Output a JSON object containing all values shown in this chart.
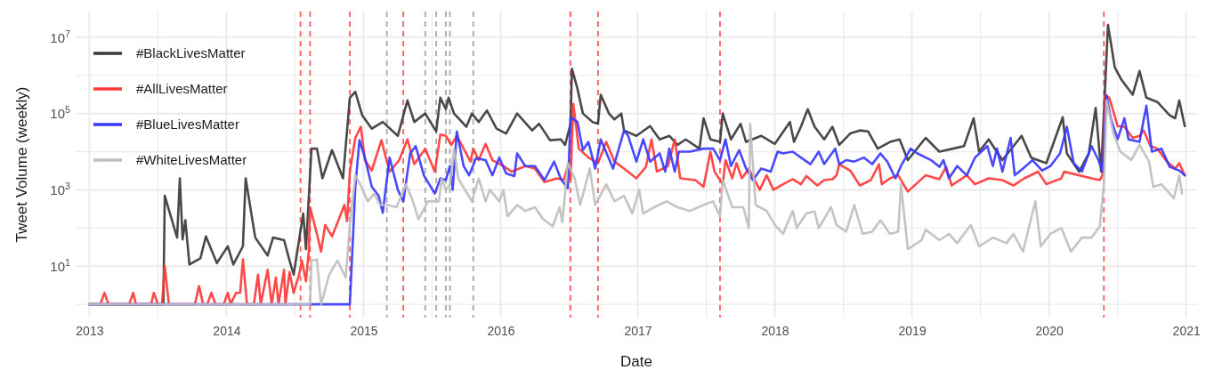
{
  "chart_data": {
    "type": "line",
    "xlabel": "Date",
    "ylabel": "Tweet Volume (weekly)",
    "log": true,
    "grid": true,
    "legend": "top left",
    "xlim": [
      2012.9,
      2021.08
    ],
    "xticks": [
      2013,
      {
        "value": 2013.5,
        "label": null
      },
      2014,
      {
        "value": 2014.5,
        "label": null
      },
      2015,
      {
        "value": 2015.5,
        "label": null
      },
      2016,
      {
        "value": 2016.5,
        "label": null
      },
      2017,
      {
        "value": 2017.5,
        "label": null
      },
      2018,
      {
        "value": 2018.5,
        "label": null
      },
      2019,
      {
        "value": 2019.5,
        "label": null
      },
      2020,
      {
        "value": 2020.5,
        "label": null
      },
      2021
    ],
    "ylim": [
      0.45,
      47000000
    ],
    "yticks": [
      {
        "value": 1,
        "label": null
      },
      {
        "value": 10,
        "label": "10$^{1}$"
      },
      {
        "value": 100,
        "label": null
      },
      {
        "value": 1000,
        "label": "10$^{3}$"
      },
      {
        "value": 10000,
        "label": null
      },
      {
        "value": 100000,
        "label": "10$^{5}$"
      },
      {
        "value": 1000000,
        "label": null
      },
      {
        "value": 10000000,
        "label": "10$^{7}$"
      }
    ],
    "ref_lines": [
      {
        "axis": "x",
        "value": 2014.54,
        "color": "#ff5a5a",
        "line_style": "dashed"
      },
      {
        "axis": "x",
        "value": 2014.61,
        "color": "#ff5a5a",
        "line_style": "dashed"
      },
      {
        "axis": "x",
        "value": 2014.9,
        "color": "#ff5a5a",
        "line_style": "dashed"
      },
      {
        "axis": "x",
        "value": 2015.17,
        "color": "#a8a8a8",
        "line_style": "dashed"
      },
      {
        "axis": "x",
        "value": 2015.29,
        "color": "#ff5a5a",
        "line_style": "dashed"
      },
      {
        "axis": "x",
        "value": 2015.45,
        "color": "#a8a8a8",
        "line_style": "dashed"
      },
      {
        "axis": "x",
        "value": 2015.53,
        "color": "#a8a8a8",
        "line_style": "dashed"
      },
      {
        "axis": "x",
        "value": 2015.6,
        "color": "#a8a8a8",
        "line_style": "dashed"
      },
      {
        "axis": "x",
        "value": 2015.63,
        "color": "#a8a8a8",
        "line_style": "dashed"
      },
      {
        "axis": "x",
        "value": 2015.8,
        "color": "#a8a8a8",
        "line_style": "dashed"
      },
      {
        "axis": "x",
        "value": 2016.51,
        "color": "#ff5a5a",
        "line_style": "dashed"
      },
      {
        "axis": "x",
        "value": 2016.71,
        "color": "#ff5a5a",
        "line_style": "dashed"
      },
      {
        "axis": "x",
        "value": 2017.6,
        "color": "#ff5a5a",
        "line_style": "dashed"
      },
      {
        "axis": "x",
        "value": 2020.4,
        "color": "#ff5a5a",
        "line_style": "dashed"
      }
    ],
    "series": [
      {
        "name": "#BlackLivesMatter",
        "color": "#3a3a3a",
        "x": [
          2013.0,
          2013.54,
          2013.55,
          2013.58,
          2013.64,
          2013.66,
          2013.68,
          2013.7,
          2013.73,
          2013.81,
          2013.85,
          2013.93,
          2014.01,
          2014.05,
          2014.12,
          2014.14,
          2014.21,
          2014.3,
          2014.34,
          2014.42,
          2014.46,
          2014.49,
          2014.56,
          2014.58,
          2014.62,
          2014.66,
          2014.7,
          2014.77,
          2014.85,
          2014.9,
          2014.94,
          2014.99,
          2015.06,
          2015.14,
          2015.25,
          2015.32,
          2015.37,
          2015.45,
          2015.53,
          2015.56,
          2015.6,
          2015.62,
          2015.66,
          2015.75,
          2015.79,
          2015.84,
          2015.9,
          2015.97,
          2016.04,
          2016.12,
          2016.23,
          2016.28,
          2016.36,
          2016.44,
          2016.47,
          2016.51,
          2016.52,
          2016.56,
          2016.6,
          2016.67,
          2016.71,
          2016.73,
          2016.79,
          2016.83,
          2016.88,
          2016.9,
          2016.99,
          2017.09,
          2017.16,
          2017.23,
          2017.29,
          2017.35,
          2017.45,
          2017.48,
          2017.53,
          2017.6,
          2017.62,
          2017.68,
          2017.75,
          2017.79,
          2017.9,
          2018.0,
          2018.11,
          2018.14,
          2018.19,
          2018.24,
          2018.29,
          2018.36,
          2018.42,
          2018.47,
          2018.55,
          2018.62,
          2018.68,
          2018.75,
          2018.84,
          2018.91,
          2018.97,
          2019.1,
          2019.2,
          2019.3,
          2019.38,
          2019.45,
          2019.49,
          2019.56,
          2019.66,
          2019.8,
          2019.87,
          2019.98,
          2020.1,
          2020.13,
          2020.22,
          2020.29,
          2020.34,
          2020.38,
          2020.43,
          2020.48,
          2020.53,
          2020.61,
          2020.66,
          2020.71,
          2020.79,
          2020.88,
          2020.92,
          2020.95,
          2020.99
        ],
        "values": [
          1,
          1,
          700,
          300,
          56,
          2000,
          50,
          160,
          11,
          16,
          60,
          12,
          33,
          11,
          33,
          2000,
          56,
          19,
          56,
          48,
          14,
          6,
          240,
          28,
          12000,
          12000,
          2000,
          11000,
          2000,
          260000,
          370000,
          90000,
          40000,
          60000,
          26000,
          220000,
          60000,
          100000,
          34000,
          260000,
          130000,
          260000,
          100000,
          45000,
          100000,
          60000,
          120000,
          40000,
          30000,
          100000,
          36000,
          54000,
          20000,
          21000,
          15000,
          54000,
          1500000,
          450000,
          100000,
          60000,
          54000,
          310000,
          100000,
          70000,
          100000,
          36000,
          26000,
          47000,
          21000,
          26000,
          15000,
          21000,
          12000,
          75000,
          21000,
          18000,
          100000,
          21000,
          54000,
          18000,
          26000,
          16000,
          60000,
          18000,
          45000,
          130000,
          45000,
          21000,
          45000,
          15000,
          30000,
          36000,
          34000,
          12000,
          18000,
          21000,
          6000,
          23000,
          10000,
          12000,
          14000,
          75000,
          10000,
          21000,
          6000,
          26000,
          7000,
          5000,
          80000,
          9000,
          3000,
          9000,
          140000,
          3000,
          21000000,
          1600000,
          750000,
          310000,
          1300000,
          260000,
          200000,
          90000,
          75000,
          220000,
          47000
        ]
      },
      {
        "name": "#AllLivesMatter",
        "color": "#ff3a3a",
        "x": [
          2013.0,
          2013.08,
          2013.11,
          2013.14,
          2013.29,
          2013.32,
          2013.34,
          2013.45,
          2013.47,
          2013.5,
          2013.53,
          2013.55,
          2013.58,
          2013.77,
          2013.8,
          2013.83,
          2013.86,
          2013.89,
          2013.92,
          2013.98,
          2014.01,
          2014.03,
          2014.07,
          2014.1,
          2014.12,
          2014.15,
          2014.2,
          2014.23,
          2014.25,
          2014.3,
          2014.33,
          2014.36,
          2014.38,
          2014.42,
          2014.43,
          2014.46,
          2014.49,
          2014.53,
          2014.55,
          2014.58,
          2014.6,
          2014.61,
          2014.66,
          2014.69,
          2014.72,
          2014.77,
          2014.82,
          2014.86,
          2014.88,
          2014.9,
          2014.94,
          2014.98,
          2015.01,
          2015.06,
          2015.13,
          2015.19,
          2015.26,
          2015.32,
          2015.37,
          2015.45,
          2015.52,
          2015.56,
          2015.6,
          2015.64,
          2015.68,
          2015.73,
          2015.78,
          2015.8,
          2015.84,
          2015.89,
          2015.94,
          2016.02,
          2016.08,
          2016.18,
          2016.25,
          2016.32,
          2016.41,
          2016.46,
          2016.49,
          2016.51,
          2016.53,
          2016.57,
          2016.64,
          2016.71,
          2016.77,
          2016.83,
          2016.9,
          2016.99,
          2017.06,
          2017.1,
          2017.14,
          2017.22,
          2017.27,
          2017.31,
          2017.42,
          2017.48,
          2017.53,
          2017.56,
          2017.62,
          2017.64,
          2017.69,
          2017.72,
          2017.76,
          2017.81,
          2017.89,
          2017.94,
          2017.99,
          2018.06,
          2018.13,
          2018.19,
          2018.23,
          2018.31,
          2018.36,
          2018.42,
          2018.45,
          2018.47,
          2018.55,
          2018.62,
          2018.7,
          2018.76,
          2018.78,
          2018.84,
          2018.9,
          2018.97,
          2019.1,
          2019.2,
          2019.25,
          2019.29,
          2019.4,
          2019.46,
          2019.56,
          2019.66,
          2019.74,
          2019.82,
          2019.92,
          2019.98,
          2020.09,
          2020.11,
          2020.22,
          2020.31,
          2020.37,
          2020.39,
          2020.41,
          2020.44,
          2020.5,
          2020.55,
          2020.61,
          2020.66,
          2020.69,
          2020.74,
          2020.79,
          2020.86,
          2020.92,
          2020.95,
          2020.99
        ],
        "values": [
          1,
          1,
          2,
          1,
          1,
          2,
          1,
          1,
          2,
          1,
          1,
          10,
          1,
          1,
          3,
          1,
          1,
          2,
          1,
          1,
          2,
          1,
          2,
          2,
          15,
          1,
          1,
          6,
          1,
          8,
          1,
          5,
          1,
          8,
          1,
          7,
          2,
          6,
          14,
          4,
          24,
          350,
          70,
          24,
          120,
          60,
          170,
          400,
          150,
          3000,
          23000,
          45000,
          6000,
          3200,
          20000,
          3000,
          6000,
          21000,
          4700,
          12000,
          3000,
          28000,
          26000,
          15000,
          26000,
          12000,
          5500,
          12000,
          6000,
          16000,
          6000,
          4200,
          3000,
          4200,
          3600,
          1600,
          2000,
          1800,
          4200,
          1800,
          180000,
          12000,
          7000,
          5000,
          18000,
          5500,
          3600,
          2000,
          4000,
          21000,
          3000,
          4200,
          21000,
          2000,
          1800,
          1200,
          10000,
          3000,
          1400,
          6000,
          2000,
          5000,
          2000,
          3600,
          1000,
          2400,
          1000,
          1400,
          1900,
          1400,
          2300,
          1300,
          1800,
          1900,
          2400,
          4700,
          3200,
          1300,
          1800,
          4700,
          1400,
          2000,
          2400,
          900,
          2400,
          1900,
          4000,
          1300,
          2400,
          1400,
          2000,
          1800,
          1300,
          2000,
          3000,
          1400,
          2000,
          3000,
          2400,
          2000,
          1800,
          2400,
          300000,
          260000,
          47000,
          45000,
          23000,
          26000,
          36000,
          14000,
          12000,
          5500,
          3600,
          5000,
          2400
        ]
      },
      {
        "name": "#BlueLivesMatter",
        "color": "#3a3aff",
        "x": [
          2013.0,
          2014.9,
          2014.94,
          2014.97,
          2015.01,
          2015.06,
          2015.11,
          2015.14,
          2015.19,
          2015.25,
          2015.29,
          2015.34,
          2015.38,
          2015.44,
          2015.52,
          2015.56,
          2015.6,
          2015.63,
          2015.65,
          2015.68,
          2015.73,
          2015.77,
          2015.82,
          2015.89,
          2015.94,
          2015.99,
          2016.04,
          2016.1,
          2016.12,
          2016.18,
          2016.25,
          2016.32,
          2016.39,
          2016.44,
          2016.49,
          2016.51,
          2016.56,
          2016.6,
          2016.64,
          2016.69,
          2016.73,
          2016.82,
          2016.9,
          2016.93,
          2016.99,
          2017.04,
          2017.09,
          2017.16,
          2017.2,
          2017.23,
          2017.27,
          2017.3,
          2017.38,
          2017.48,
          2017.55,
          2017.6,
          2017.64,
          2017.68,
          2017.74,
          2017.79,
          2017.84,
          2017.9,
          2017.97,
          2018.02,
          2018.06,
          2018.13,
          2018.19,
          2018.26,
          2018.32,
          2018.36,
          2018.44,
          2018.47,
          2018.52,
          2018.58,
          2018.65,
          2018.71,
          2018.77,
          2018.82,
          2018.88,
          2018.92,
          2018.99,
          2019.04,
          2019.14,
          2019.2,
          2019.23,
          2019.27,
          2019.33,
          2019.4,
          2019.46,
          2019.55,
          2019.59,
          2019.62,
          2019.66,
          2019.72,
          2019.75,
          2019.81,
          2019.88,
          2019.95,
          2020.01,
          2020.08,
          2020.13,
          2020.18,
          2020.24,
          2020.31,
          2020.36,
          2020.39,
          2020.42,
          2020.45,
          2020.5,
          2020.55,
          2020.58,
          2020.66,
          2020.71,
          2020.75,
          2020.82,
          2020.88,
          2020.95,
          2020.99
        ],
        "values": [
          1,
          1,
          1200,
          20000,
          7000,
          1200,
          700,
          250,
          7000,
          1000,
          500,
          9000,
          14000,
          2400,
          800,
          2000,
          1800,
          4200,
          1000,
          34000,
          4200,
          2400,
          6700,
          6000,
          2400,
          7000,
          2700,
          2300,
          9000,
          4200,
          4200,
          1800,
          5500,
          1900,
          1100,
          80000,
          60000,
          11000,
          18000,
          3600,
          21000,
          3600,
          36000,
          26000,
          5500,
          21000,
          5500,
          9000,
          3000,
          12000,
          3000,
          10000,
          10000,
          12000,
          12000,
          6000,
          21000,
          4200,
          11000,
          3600,
          1800,
          3600,
          3000,
          10000,
          9000,
          10000,
          7000,
          4700,
          10000,
          4700,
          12000,
          4700,
          6000,
          5500,
          7000,
          4700,
          9000,
          5500,
          2000,
          4200,
          12000,
          9000,
          6000,
          4000,
          6000,
          2000,
          4200,
          2400,
          7000,
          14000,
          4200,
          12000,
          3000,
          23000,
          2400,
          3600,
          6000,
          3200,
          4200,
          9000,
          45000,
          5000,
          3000,
          14000,
          6000,
          3000,
          300000,
          75000,
          21000,
          75000,
          21000,
          18000,
          160000,
          10000,
          12000,
          4000,
          3200,
          2400
        ]
      },
      {
        "name": "#WhiteLivesMatter",
        "color": "#bfbfbf",
        "x": [
          2013.0,
          2014.61,
          2014.62,
          2014.66,
          2014.69,
          2014.75,
          2014.81,
          2014.87,
          2014.9,
          2014.94,
          2014.98,
          2015.03,
          2015.08,
          2015.12,
          2015.18,
          2015.24,
          2015.31,
          2015.36,
          2015.4,
          2015.47,
          2015.55,
          2015.57,
          2015.6,
          2015.63,
          2015.66,
          2015.69,
          2015.74,
          2015.79,
          2015.84,
          2015.89,
          2015.92,
          2015.99,
          2016.02,
          2016.05,
          2016.12,
          2016.18,
          2016.25,
          2016.31,
          2016.38,
          2016.43,
          2016.45,
          2016.49,
          2016.54,
          2016.58,
          2016.65,
          2016.69,
          2016.77,
          2016.83,
          2016.9,
          2016.96,
          2017.01,
          2017.04,
          2017.12,
          2017.21,
          2017.29,
          2017.38,
          2017.48,
          2017.55,
          2017.6,
          2017.62,
          2017.69,
          2017.77,
          2017.81,
          2017.82,
          2017.86,
          2017.94,
          2018.0,
          2018.06,
          2018.13,
          2018.16,
          2018.23,
          2018.29,
          2018.32,
          2018.41,
          2018.45,
          2018.52,
          2018.58,
          2018.64,
          2018.71,
          2018.77,
          2018.84,
          2018.9,
          2018.92,
          2018.97,
          2019.07,
          2019.1,
          2019.2,
          2019.27,
          2019.33,
          2019.43,
          2019.49,
          2019.59,
          2019.69,
          2019.74,
          2019.81,
          2019.9,
          2019.94,
          2020.01,
          2020.09,
          2020.16,
          2020.24,
          2020.31,
          2020.37,
          2020.4,
          2020.42,
          2020.47,
          2020.52,
          2020.6,
          2020.66,
          2020.73,
          2020.76,
          2020.82,
          2020.91,
          2020.95,
          2020.97
        ],
        "values": [
          1,
          1,
          14,
          15,
          1,
          6,
          14,
          5,
          120,
          2400,
          1300,
          500,
          800,
          400,
          400,
          350,
          1400,
          500,
          170,
          500,
          500,
          2000,
          1000,
          1400,
          12000,
          2000,
          1000,
          500,
          2000,
          500,
          1000,
          500,
          1000,
          200,
          400,
          280,
          350,
          170,
          110,
          350,
          140,
          5000,
          2000,
          400,
          3600,
          400,
          1400,
          500,
          700,
          240,
          1000,
          240,
          350,
          500,
          350,
          280,
          400,
          500,
          200,
          1800,
          350,
          350,
          100,
          54000,
          400,
          280,
          120,
          70,
          280,
          100,
          240,
          270,
          100,
          350,
          120,
          80,
          400,
          70,
          80,
          160,
          70,
          80,
          1400,
          28,
          48,
          90,
          48,
          70,
          40,
          120,
          33,
          56,
          40,
          70,
          24,
          500,
          33,
          70,
          100,
          24,
          56,
          56,
          110,
          1400,
          220000,
          30000,
          10000,
          6000,
          15000,
          5500,
          1200,
          1400,
          600,
          2400,
          800
        ]
      }
    ]
  }
}
